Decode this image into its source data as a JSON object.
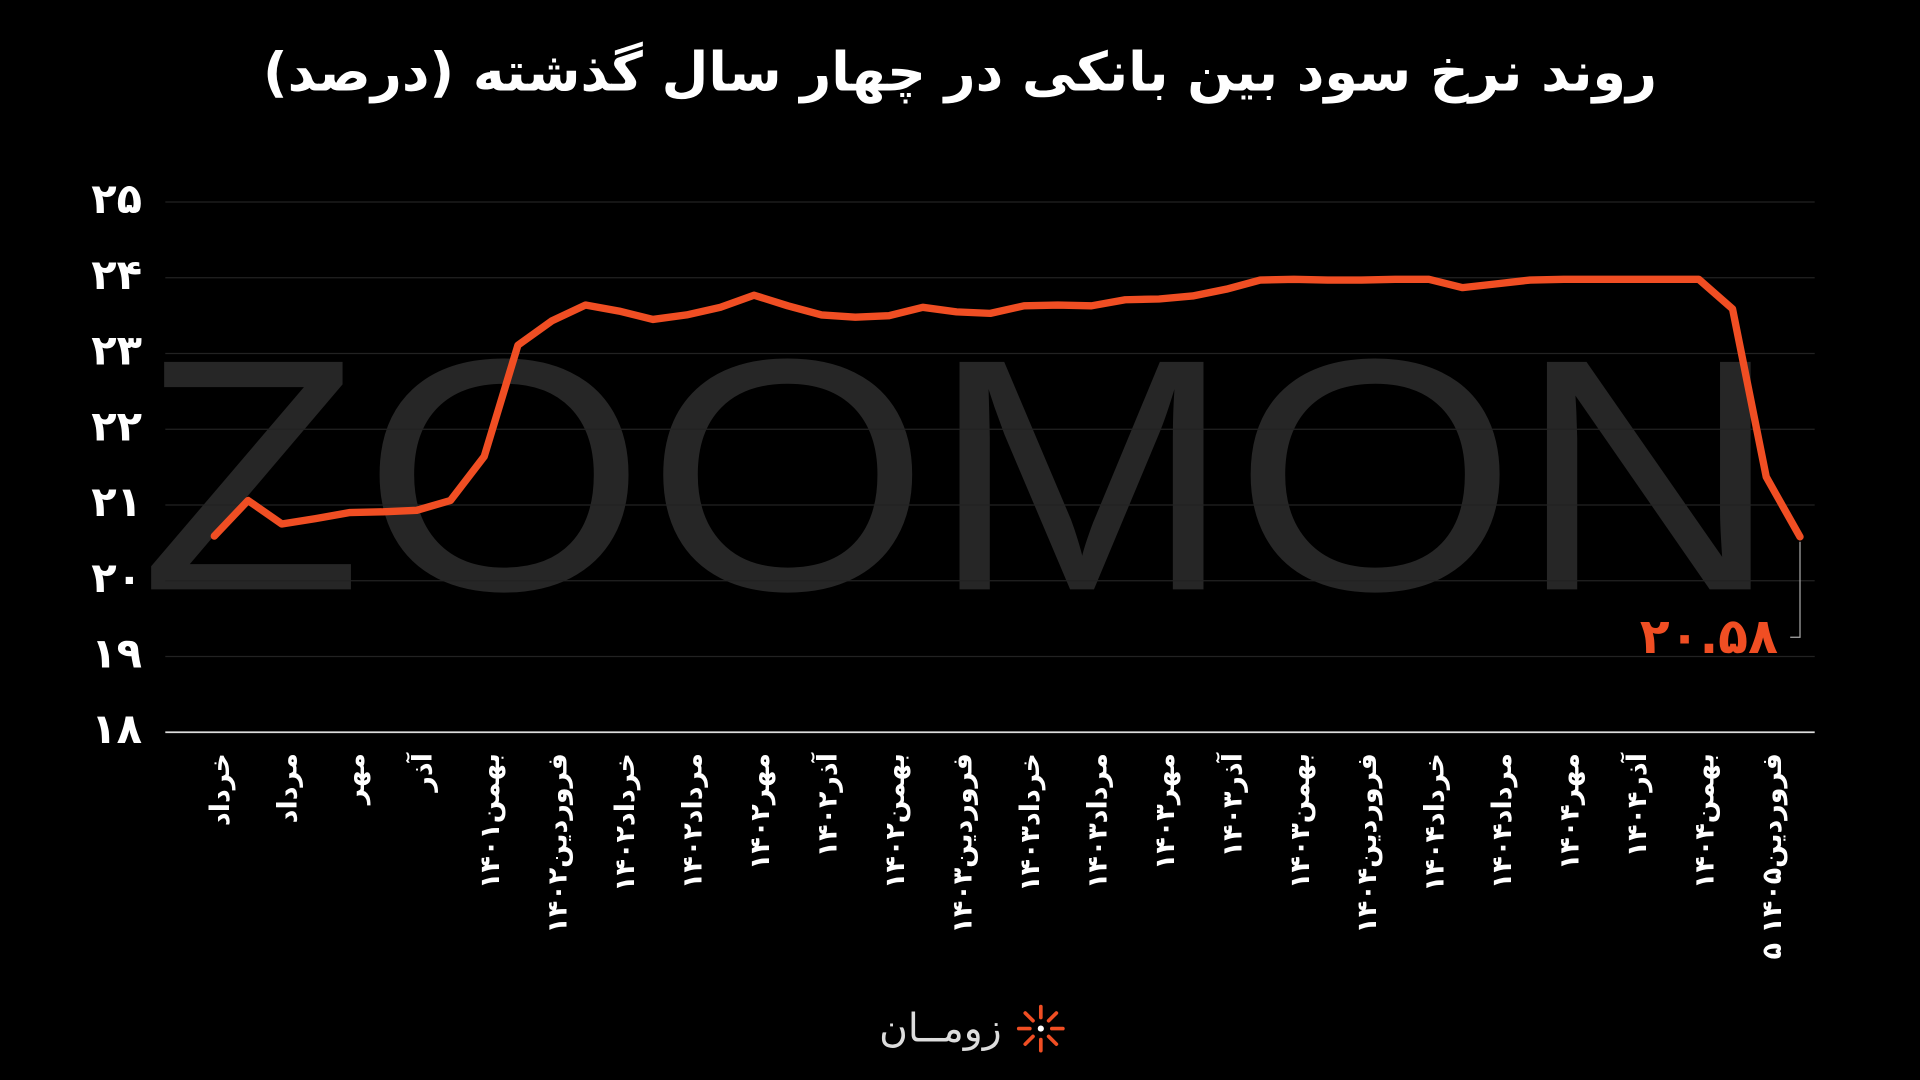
{
  "chart_data": {
    "type": "line",
    "title": "روند نرخ سود بین بانکی در چهار سال گذشته (درصد)",
    "categories": [
      "خرداد",
      null,
      "مرداد",
      null,
      "مهر",
      null,
      "آذر",
      null,
      "بهمن۱۴۰۱",
      null,
      "فروردین۱۴۰۲",
      null,
      "خرداد۱۴۰۲",
      null,
      "مرداد۱۴۰۲",
      null,
      "مهر۱۴۰۲",
      null,
      "آذر۱۴۰۲",
      null,
      "بهمن۱۴۰۲",
      null,
      "فروردین۱۴۰۳",
      null,
      "خرداد۱۴۰۳",
      null,
      "مرداد۱۴۰۳",
      null,
      "مهر۱۴۰۳",
      null,
      "آذر۱۴۰۳",
      null,
      "بهمن۱۴۰۳",
      null,
      "فروردین۱۴۰۴",
      null,
      "خرداد۱۴۰۴",
      null,
      "مرداد۱۴۰۴",
      null,
      "مهر۱۴۰۴",
      null,
      "آذر۱۴۰۴",
      null,
      "بهمن۱۴۰۴",
      null,
      "۵ فروردین۱۴۰۵",
      null
    ],
    "values": [
      20.59,
      21.06,
      20.75,
      20.82,
      20.9,
      20.91,
      20.93,
      21.06,
      21.64,
      23.11,
      23.43,
      23.64,
      23.56,
      23.45,
      23.51,
      23.61,
      23.77,
      23.63,
      23.51,
      23.48,
      23.5,
      23.61,
      23.55,
      23.53,
      23.63,
      23.64,
      23.63,
      23.71,
      23.72,
      23.76,
      23.85,
      23.97,
      23.98,
      23.97,
      23.97,
      23.98,
      23.98,
      23.87,
      23.92,
      23.97,
      23.98,
      23.98,
      23.98,
      23.98,
      23.98,
      23.59,
      21.37,
      20.58
    ],
    "value_labels": [
      null,
      null,
      null,
      null,
      null,
      null,
      null,
      null,
      null,
      null,
      null,
      null,
      null,
      null,
      null,
      null,
      null,
      null,
      null,
      null,
      null,
      null,
      null,
      null,
      null,
      null,
      null,
      null,
      null,
      null,
      null,
      null,
      null,
      null,
      null,
      null,
      null,
      null,
      null,
      null,
      null,
      null,
      null,
      null,
      null,
      null,
      null,
      "۲۰.۵۸"
    ],
    "color": "#f04e23",
    "ylim": [
      18,
      25
    ],
    "yticks": [
      {
        "value": 18,
        "label": "۱۸"
      },
      {
        "value": 19,
        "label": "۱۹"
      },
      {
        "value": 20,
        "label": "۲۰"
      },
      {
        "value": 21,
        "label": "۲۱"
      },
      {
        "value": 22,
        "label": "۲۲"
      },
      {
        "value": 23,
        "label": "۲۳"
      },
      {
        "value": 24,
        "label": "۲۴"
      },
      {
        "value": 25,
        "label": "۲۵"
      }
    ],
    "grid": true
  },
  "watermark": "ZOOMON",
  "brand": "زومــان"
}
